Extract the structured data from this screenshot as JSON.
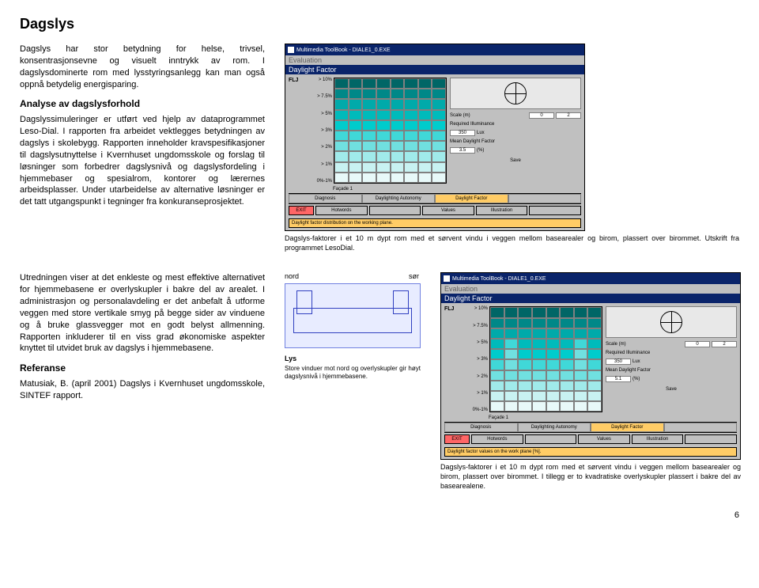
{
  "title": "Dagslys",
  "intro": "Dagslys har stor betydning for helse, trivsel, konsentrasjonsevne og visuelt inntrykk av rom. I dagslysdominerte rom med lysstyringsanlegg kan man også oppnå betydelig energisparing.",
  "analyse_heading": "Analyse av dagslysforhold",
  "analyse_text": "Dagslyssimuleringer er utført ved hjelp av dataprogrammet Leso-Dial. I rapporten fra arbeidet vektlegges betydningen av dagslys i skolebygg. Rapporten inneholder kravspesifikasjoner til dagslysutnyttelse i Kvernhuset ungdomsskole og forslag til løsninger som forbedrer dagslysnivå og dagslysfordeling i hjemmebaser og spesialrom, kontorer og lærernes arbeidsplasser. Under utarbeidelse av alternative løsninger er det tatt utgangspunkt i tegninger fra konkuranseprosjektet.",
  "utredning_text": "Utredningen viser at det enkleste og mest effektive alternativet for hjemmebasene er overlyskupler i bakre del av arealet. I administrasjon og personalavdeling er det anbefalt å utforme veggen med store vertikale smyg på begge sider av vinduene og å bruke glassvegger mot en godt belyst allmenning. Rapporten inkluderer til en viss grad økonomiske aspekter knyttet til utvidet bruk av dagslys i hjemmebasene.",
  "referanse_heading": "Referanse",
  "referanse_text": "Matusiak, B. (april 2001) Dagslys i Kvernhuset ungdomsskole, SINTEF rapport.",
  "caption1": "Dagslys-faktorer i et 10 m dypt rom med et sørvent vindu i veggen mellom basearealer og birom, plassert over birommet. Utskrift fra programmet LesoDial.",
  "caption2": "Dagslys-faktorer i et 10 m dypt rom med et sørvent vindu i veggen mellom basearealer og birom, plassert over birommet. I tillegg er to kvadratiske overlyskupler plassert i bakre del av basearealene.",
  "nord": "nord",
  "sor": "sør",
  "lys_heading": "Lys",
  "lys_text": "Store vinduer mot nord og overlyskupler gir høyt dagslysnivå i hjemmebasene.",
  "page_number": "6",
  "sim": {
    "window_title": "Multimedia ToolBook - DIALE1_0.EXE",
    "eval": "Evaluation",
    "df": "Daylight Factor",
    "flj": "FLJ",
    "yticks": [
      "> 10%",
      "> 7.5%",
      "> 5%",
      "> 3%",
      "> 2%",
      "> 1%",
      "0%-1%"
    ],
    "scale_label": "Scale (m)",
    "req_label": "Required Illuminance",
    "req_val1": "350",
    "req_unit": "Lux",
    "mean_label": "Mean Daylight Factor",
    "mean_val1": "3.5",
    "mean_val2": "5.1",
    "mean_unit": "(%)",
    "tabs": [
      "Diagnosis",
      "Daylighting Autonomy",
      "Daylight Factor",
      ""
    ],
    "bottom_tabs": [
      "Hotwords",
      "",
      "Values",
      "Illustration",
      ""
    ],
    "exit": "EXIT",
    "save": "Save",
    "status1": "Daylight factor distribution on the working plane.",
    "status2": "Daylight factor values on the work plane [%].",
    "facade": "Façade 1",
    "chart1": {
      "cols": 8,
      "rows": 10,
      "colors": [
        "#006666",
        "#006666",
        "#006666",
        "#006666",
        "#006666",
        "#006666",
        "#006666",
        "#006666",
        "#008888",
        "#008888",
        "#008888",
        "#008888",
        "#008888",
        "#008888",
        "#008888",
        "#008888",
        "#00aaaa",
        "#00aaaa",
        "#00aaaa",
        "#00aaaa",
        "#00aaaa",
        "#00aaaa",
        "#00aaaa",
        "#00aaaa",
        "#00bbbb",
        "#00bbbb",
        "#00bbbb",
        "#00bbbb",
        "#00bbbb",
        "#00bbbb",
        "#00bbbb",
        "#00bbbb",
        "#00cccc",
        "#00cccc",
        "#00cccc",
        "#00cccc",
        "#00cccc",
        "#00cccc",
        "#00cccc",
        "#00cccc",
        "#40d8d8",
        "#40d8d8",
        "#40d8d8",
        "#40d8d8",
        "#40d8d8",
        "#40d8d8",
        "#40d8d8",
        "#40d8d8",
        "#70e0e0",
        "#70e0e0",
        "#70e0e0",
        "#70e0e0",
        "#70e0e0",
        "#70e0e0",
        "#70e0e0",
        "#70e0e0",
        "#a0eaea",
        "#a0eaea",
        "#a0eaea",
        "#a0eaea",
        "#a0eaea",
        "#a0eaea",
        "#a0eaea",
        "#a0eaea",
        "#c8f2f2",
        "#c8f2f2",
        "#c8f2f2",
        "#c8f2f2",
        "#c8f2f2",
        "#c8f2f2",
        "#c8f2f2",
        "#c8f2f2",
        "#e8f9f9",
        "#e8f9f9",
        "#e8f9f9",
        "#e8f9f9",
        "#e8f9f9",
        "#e8f9f9",
        "#e8f9f9",
        "#e8f9f9"
      ]
    },
    "chart2": {
      "cols": 8,
      "rows": 10,
      "colors": [
        "#006666",
        "#006666",
        "#006666",
        "#006666",
        "#006666",
        "#006666",
        "#006666",
        "#006666",
        "#008888",
        "#008888",
        "#008888",
        "#008888",
        "#008888",
        "#008888",
        "#008888",
        "#008888",
        "#00aaaa",
        "#00aaaa",
        "#00aaaa",
        "#00aaaa",
        "#00aaaa",
        "#00aaaa",
        "#00aaaa",
        "#00aaaa",
        "#00bbbb",
        "#40d8d8",
        "#00bbbb",
        "#00bbbb",
        "#00bbbb",
        "#00bbbb",
        "#40d8d8",
        "#00bbbb",
        "#00cccc",
        "#70e0e0",
        "#00cccc",
        "#00cccc",
        "#00cccc",
        "#00cccc",
        "#70e0e0",
        "#00cccc",
        "#40d8d8",
        "#70e0e0",
        "#40d8d8",
        "#40d8d8",
        "#40d8d8",
        "#40d8d8",
        "#70e0e0",
        "#40d8d8",
        "#70e0e0",
        "#70e0e0",
        "#70e0e0",
        "#70e0e0",
        "#70e0e0",
        "#70e0e0",
        "#70e0e0",
        "#70e0e0",
        "#a0eaea",
        "#a0eaea",
        "#a0eaea",
        "#a0eaea",
        "#a0eaea",
        "#a0eaea",
        "#a0eaea",
        "#a0eaea",
        "#c8f2f2",
        "#c8f2f2",
        "#c8f2f2",
        "#c8f2f2",
        "#c8f2f2",
        "#c8f2f2",
        "#c8f2f2",
        "#c8f2f2",
        "#e8f9f9",
        "#e8f9f9",
        "#e8f9f9",
        "#e8f9f9",
        "#e8f9f9",
        "#e8f9f9",
        "#e8f9f9",
        "#e8f9f9"
      ]
    }
  }
}
